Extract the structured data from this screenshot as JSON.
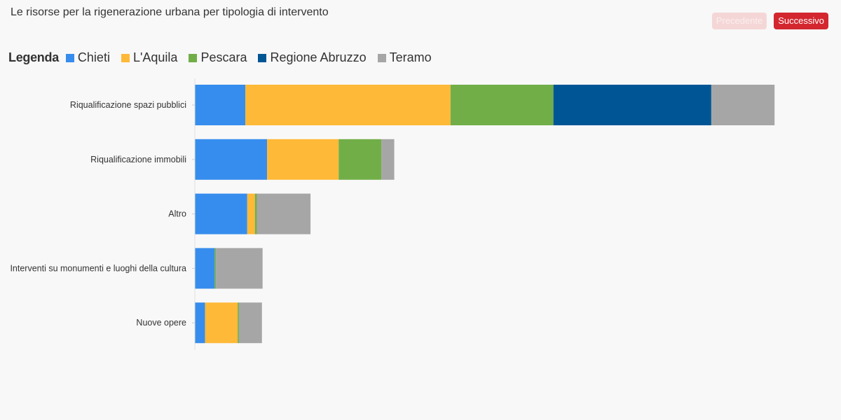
{
  "page": {
    "title": "Le risorse per la rigenerazione urbana per tipologia di intervento",
    "prev_label": "Precedente",
    "next_label": "Successivo",
    "legend_title": "Legenda"
  },
  "chart_data": {
    "type": "bar",
    "orientation": "horizontal",
    "stacked": true,
    "title": "Le risorse per la rigenerazione urbana per tipologia di intervento",
    "categories": [
      "Riqualificazione spazi pubblici",
      "Riqualificazione immobili",
      "Altro",
      "Interventi su monumenti e luoghi della cultura",
      "Nuove opere"
    ],
    "series": [
      {
        "name": "Chieti",
        "color": "#368ded",
        "values": [
          7.9,
          11.3,
          8.2,
          3.1,
          1.6
        ]
      },
      {
        "name": "L'Aquila",
        "color": "#ffb938",
        "values": [
          32.1,
          11.2,
          1.2,
          0,
          5.1
        ]
      },
      {
        "name": "Pescara",
        "color": "#72ae48",
        "values": [
          16.1,
          6.7,
          0.3,
          0.2,
          0.2
        ]
      },
      {
        "name": "Regione Abruzzo",
        "color": "#005694",
        "values": [
          24.7,
          0,
          0,
          0,
          0
        ]
      },
      {
        "name": "Teramo",
        "color": "#a6a6a6",
        "values": [
          9.9,
          2.0,
          8.4,
          7.3,
          3.6
        ]
      }
    ],
    "xlim": [
      0,
      100
    ],
    "grid": false,
    "legend_position": "top-left"
  }
}
